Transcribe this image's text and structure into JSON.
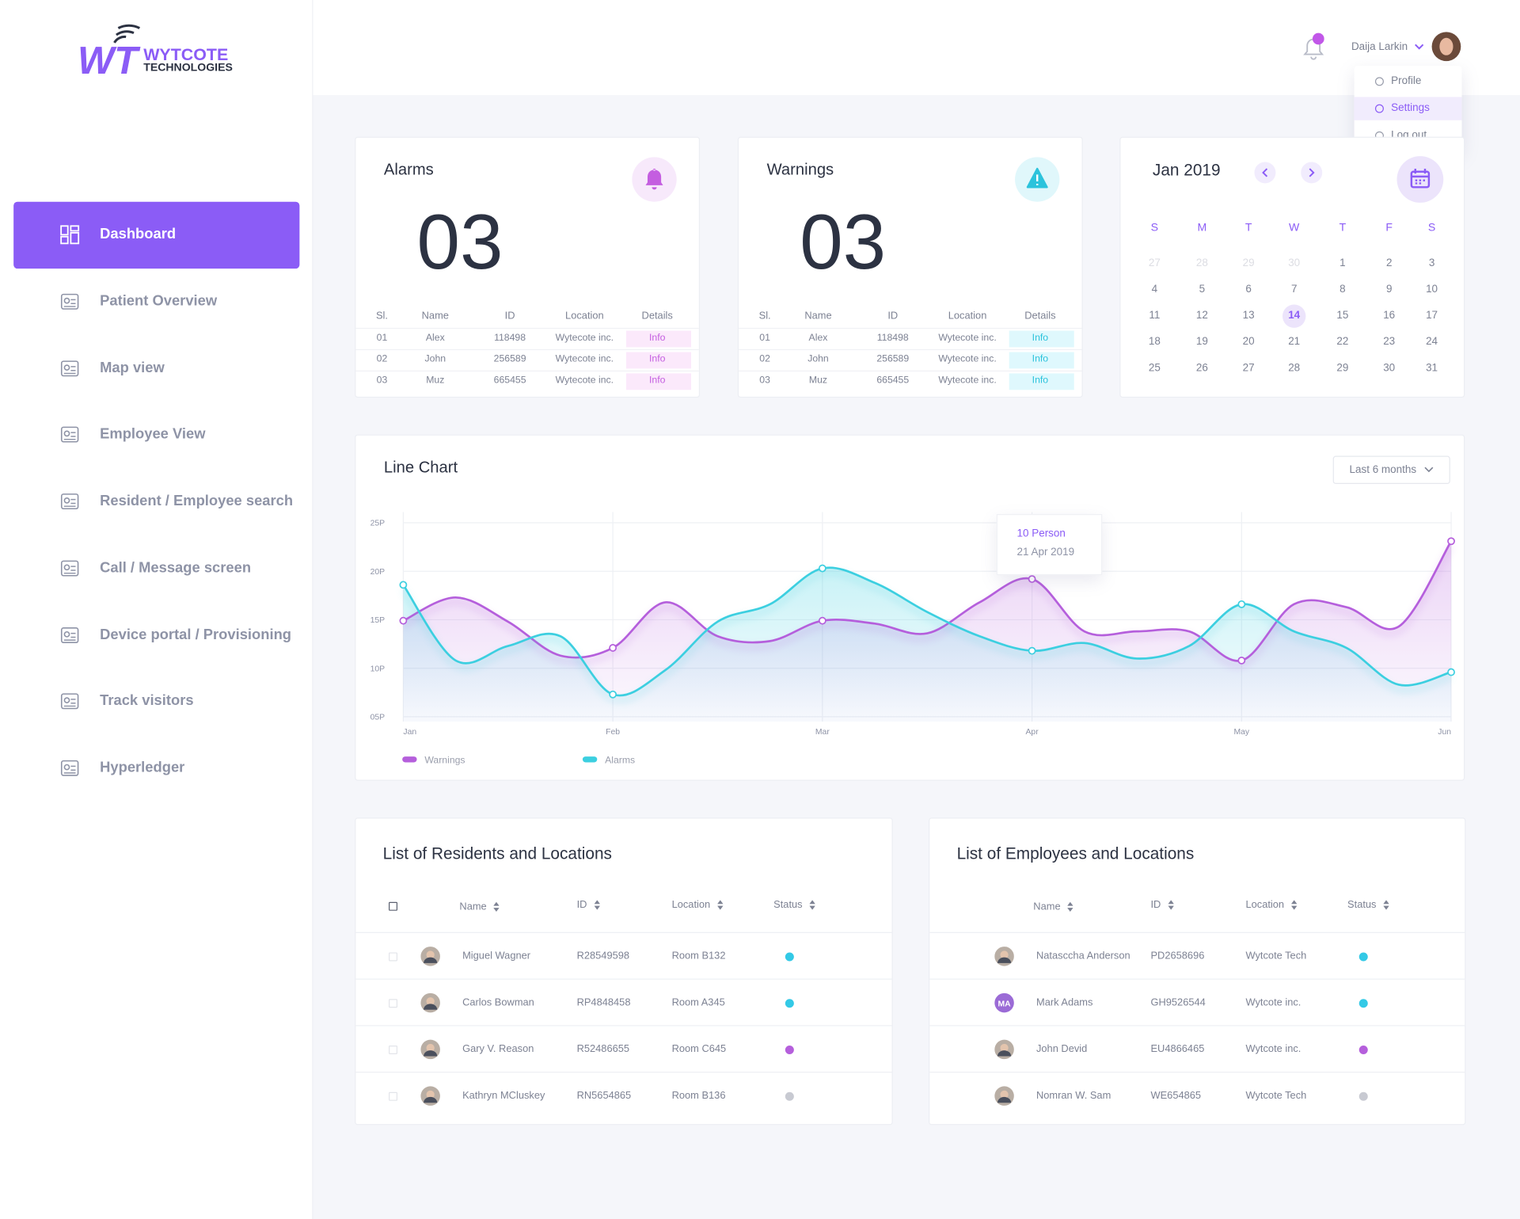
{
  "sidebar": {
    "logo": {
      "mark": "WT",
      "name": "WYTCOTE",
      "sub": "TECHNOLOGIES"
    },
    "nav": [
      "Dashboard",
      "Patient Overview",
      "Map view",
      "Employee View",
      "Resident / Employee search",
      "Call / Message screen",
      "Device portal / Provisioning",
      "Track visitors",
      "Hyperledger"
    ],
    "active": 0
  },
  "header": {
    "user": "Daija Larkin",
    "menu": [
      "Profile",
      "Settings",
      "Log out"
    ],
    "menu_active": 1
  },
  "alarms": {
    "title": "Alarms",
    "count": "03",
    "color": "#c45ee0",
    "columns": [
      "Sl.",
      "Name",
      "ID",
      "Location",
      "Details"
    ],
    "rows": [
      [
        "01",
        "Alex",
        "118498",
        "Wytecote inc.",
        "Info"
      ],
      [
        "02",
        "John",
        "256589",
        "Wytecote inc.",
        "Info"
      ],
      [
        "03",
        "Muz",
        "665455",
        "Wytecote inc.",
        "Info"
      ]
    ]
  },
  "warnings": {
    "title": "Warnings",
    "count": "03",
    "color": "#2cc3dc",
    "columns": [
      "Sl.",
      "Name",
      "ID",
      "Location",
      "Details"
    ],
    "rows": [
      [
        "01",
        "Alex",
        "118498",
        "Wytecote inc.",
        "Info"
      ],
      [
        "02",
        "John",
        "256589",
        "Wytecote inc.",
        "Info"
      ],
      [
        "03",
        "Muz",
        "665455",
        "Wytecote inc.",
        "Info"
      ]
    ]
  },
  "calendar": {
    "month": "Jan 2019",
    "weekdays": [
      "S",
      "M",
      "T",
      "W",
      "T",
      "F",
      "S"
    ],
    "leading_days": [
      27,
      28,
      29,
      30
    ],
    "days": [
      1,
      2,
      3,
      4,
      5,
      6,
      7,
      8,
      9,
      10,
      11,
      12,
      13,
      14,
      15,
      16,
      17,
      18,
      19,
      20,
      21,
      22,
      23,
      24,
      25,
      26,
      27,
      28,
      29,
      30,
      31
    ],
    "today": 14
  },
  "chart_data": {
    "type": "line",
    "title": "Line Chart",
    "range": "Last 6 months",
    "x": [
      0,
      0.25,
      0.5,
      0.75,
      1,
      1.25,
      1.5,
      1.75,
      2,
      2.25,
      2.5,
      2.75,
      3,
      3.25,
      3.5,
      3.75,
      4,
      4.25,
      4.5,
      4.75,
      5
    ],
    "xlim": [
      0,
      5
    ],
    "xticks": [
      {
        "value": 0,
        "label": "Jan"
      },
      {
        "value": 1,
        "label": "Feb"
      },
      {
        "value": 2,
        "label": "Mar"
      },
      {
        "value": 3,
        "label": "Apr"
      },
      {
        "value": 4,
        "label": "May"
      },
      {
        "value": 5,
        "label": "Jun"
      }
    ],
    "ylim": [
      4.5,
      26.5
    ],
    "yticks": [
      {
        "value": 5,
        "label": "05P"
      },
      {
        "value": 10,
        "label": "10P"
      },
      {
        "value": 15,
        "label": "15P"
      },
      {
        "value": 20,
        "label": "20P"
      },
      {
        "value": 25,
        "label": "25P"
      }
    ],
    "grid": true,
    "series": [
      {
        "name": "Warnings",
        "color": "#b55fdc",
        "values": [
          14.9,
          17.3,
          14.8,
          11.3,
          12.1,
          16.8,
          13.3,
          12.8,
          14.9,
          14.6,
          13.6,
          16.8,
          19.2,
          13.8,
          13.8,
          13.8,
          10.8,
          16.6,
          16.3,
          14.3,
          23.1
        ]
      },
      {
        "name": "Alarms",
        "color": "#3ccfe0",
        "values": [
          18.6,
          10.8,
          12.3,
          13.3,
          7.3,
          9.8,
          14.8,
          16.6,
          20.3,
          18.8,
          15.8,
          13.3,
          11.8,
          12.6,
          11,
          12.3,
          16.6,
          13.8,
          12.1,
          8.3,
          9.6
        ]
      }
    ],
    "tooltip": {
      "title": "10 Person",
      "subtitle": "21 Apr 2019"
    }
  },
  "residents": {
    "title": "List of Residents and Locations",
    "columns": [
      "Name",
      "ID",
      "Location",
      "Status"
    ],
    "rows": [
      {
        "name": "Miguel Wagner",
        "id": "R28549598",
        "location": "Room B132",
        "status": "#33c9e6"
      },
      {
        "name": "Carlos Bowman",
        "id": "RP4848458",
        "location": "Room A345",
        "status": "#33c9e6"
      },
      {
        "name": "Gary V. Reason",
        "id": "R52486655",
        "location": "Room C645",
        "status": "#b55fdc"
      },
      {
        "name": "Kathryn MCluskey",
        "id": "RN5654865",
        "location": "Room B136",
        "status": "#c8cad2"
      }
    ]
  },
  "employees": {
    "title": "List of Employees and Locations",
    "columns": [
      "Name",
      "ID",
      "Location",
      "Status"
    ],
    "rows": [
      {
        "name": "Natasccha Anderson",
        "id": "PD2658696",
        "location": "Wytcote Tech",
        "status": "#33c9e6"
      },
      {
        "name": "Mark Adams",
        "initials": "MA",
        "id": "GH9526544",
        "location": "Wytcote inc.",
        "status": "#33c9e6"
      },
      {
        "name": "John Devid",
        "id": "EU4866465",
        "location": "Wytcote inc.",
        "status": "#b55fdc"
      },
      {
        "name": "Nomran W. Sam",
        "id": "WE654865",
        "location": "Wytcote Tech",
        "status": "#c8cad2"
      }
    ]
  }
}
